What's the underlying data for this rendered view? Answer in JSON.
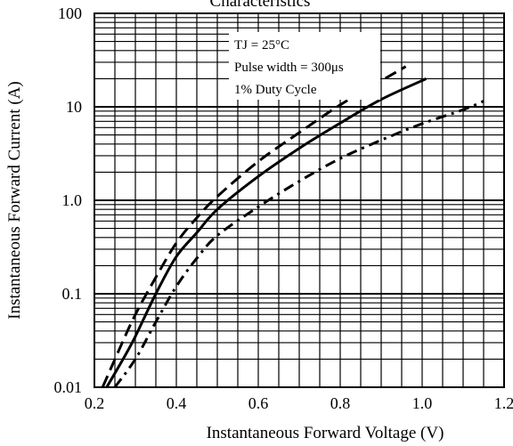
{
  "chart_data": {
    "type": "line",
    "title": "Characteristics",
    "xlabel": "Instantaneous Forward Voltage (V)",
    "ylabel": "Instantaneous Forward Current (A)",
    "xlim": [
      0.2,
      1.2
    ],
    "ylim": [
      0.01,
      100
    ],
    "yscale": "log",
    "grid": true,
    "x_ticks": [
      "0.2",
      "0.4",
      "0.6",
      "0.8",
      "1.0",
      "1.2"
    ],
    "y_ticks": [
      "0.01",
      "0.1",
      "1.0",
      "10",
      "100"
    ],
    "annotations": [
      "TJ = 25°C",
      "Pulse width = 300μs",
      "1% Duty Cycle"
    ],
    "series": [
      {
        "style": "dashed",
        "x": [
          0.22,
          0.26,
          0.3,
          0.35,
          0.4,
          0.45,
          0.5,
          0.6,
          0.7,
          0.8,
          0.9,
          0.96
        ],
        "y": [
          0.01,
          0.025,
          0.06,
          0.15,
          0.35,
          0.65,
          1.1,
          2.6,
          5.3,
          10.5,
          19.0,
          27.0
        ]
      },
      {
        "style": "solid",
        "x": [
          0.23,
          0.27,
          0.3,
          0.35,
          0.4,
          0.45,
          0.5,
          0.6,
          0.7,
          0.8,
          0.9,
          1.01
        ],
        "y": [
          0.01,
          0.02,
          0.035,
          0.1,
          0.25,
          0.45,
          0.8,
          1.8,
          3.6,
          6.7,
          12.0,
          20.0
        ]
      },
      {
        "style": "dash-dot",
        "x": [
          0.25,
          0.3,
          0.35,
          0.4,
          0.45,
          0.5,
          0.6,
          0.7,
          0.8,
          0.9,
          1.0,
          1.1,
          1.15
        ],
        "y": [
          0.01,
          0.02,
          0.05,
          0.12,
          0.24,
          0.42,
          0.85,
          1.6,
          2.8,
          4.4,
          6.6,
          9.3,
          11.5
        ]
      }
    ]
  }
}
